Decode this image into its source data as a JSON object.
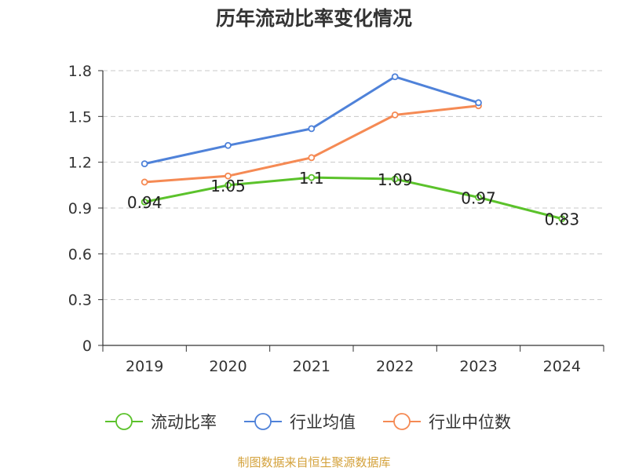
{
  "chart_data": {
    "type": "line",
    "title": "历年流动比率变化情况",
    "categories": [
      "2019",
      "2020",
      "2021",
      "2022",
      "2023",
      "2024"
    ],
    "ylim": [
      0,
      1.8
    ],
    "yticks": [
      "0",
      "0.3",
      "0.6",
      "0.9",
      "1.2",
      "1.5",
      "1.8"
    ],
    "grid": true,
    "legend_position": "bottom",
    "series": [
      {
        "name": "流动比率",
        "color": "#5bc22b",
        "values": [
          0.94,
          1.05,
          1.1,
          1.09,
          0.97,
          0.83
        ],
        "labels": [
          "0.94",
          "1.05",
          "1.1",
          "1.09",
          "0.97",
          "0.83"
        ]
      },
      {
        "name": "行业均值",
        "color": "#4f82d9",
        "values": [
          1.19,
          1.31,
          1.42,
          1.76,
          1.59,
          null
        ]
      },
      {
        "name": "行业中位数",
        "color": "#f58a54",
        "values": [
          1.07,
          1.11,
          1.23,
          1.51,
          1.57,
          null
        ]
      }
    ]
  },
  "source_text": "制图数据来自恒生聚源数据库"
}
